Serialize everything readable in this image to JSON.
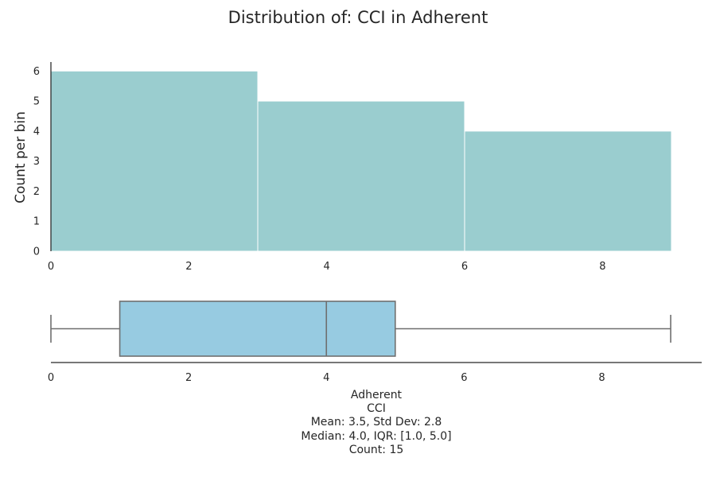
{
  "title": "Distribution of: CCI in Adherent",
  "chart_data": [
    {
      "type": "histogram",
      "bins": [
        {
          "start": 0,
          "end": 3,
          "count": 6
        },
        {
          "start": 3,
          "end": 6,
          "count": 5
        },
        {
          "start": 6,
          "end": 9,
          "count": 4
        }
      ],
      "xlim": [
        0,
        9
      ],
      "ylim": [
        0,
        6.3
      ],
      "xticks": [
        0,
        2,
        4,
        6,
        8
      ],
      "yticks": [
        0,
        1,
        2,
        3,
        4,
        5,
        6
      ],
      "ylabel": "Count per bin",
      "color": "#9acdcf",
      "grid": false
    },
    {
      "type": "boxplot",
      "min": 0,
      "q1": 1,
      "median": 4,
      "q3": 5,
      "max": 9,
      "xlim": [
        0,
        9.45
      ],
      "xticks": [
        0,
        2,
        4,
        6,
        8
      ],
      "color": "#97cbe1",
      "grid": false
    }
  ],
  "stats_lines": [
    "Adherent",
    "CCI",
    "Mean: 3.5, Std Dev: 2.8",
    "Median: 4.0, IQR: [1.0, 5.0]",
    "Count: 15"
  ]
}
